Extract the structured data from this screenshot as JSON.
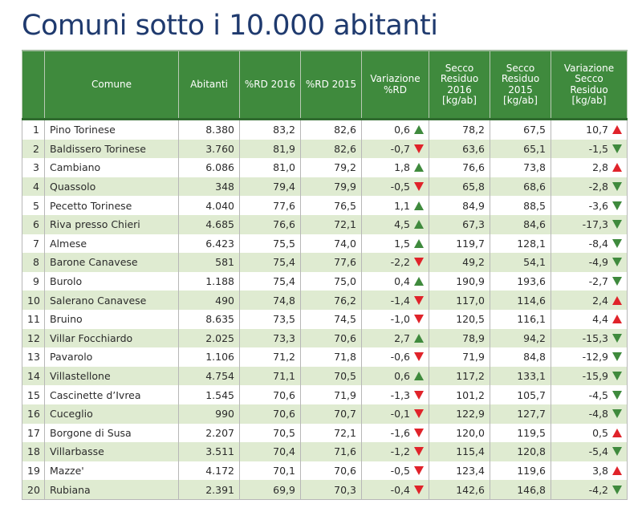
{
  "title": "Comuni sotto i 10.000 abitanti",
  "colors": {
    "header_bg": "#3f8a3d",
    "row_alt_bg": "#dfebd1",
    "title": "#1f3a6e",
    "arrow_green": "#3f8a3d",
    "arrow_red": "#e0232a"
  },
  "table": {
    "headers": [
      "",
      "Comune",
      "Abitanti",
      "%RD 2016",
      "%RD 2015",
      "Variazione\n%RD",
      "Secco\nResiduo\n2016\n[kg/ab]",
      "Secco\nResiduo\n2015\n[kg/ab]",
      "Variazione\nSecco\nResiduo\n[kg/ab]"
    ],
    "rows": [
      {
        "rank": "1",
        "comune": "Pino Torinese",
        "abitanti": "8.380",
        "rd2016": "83,2",
        "rd2015": "82,6",
        "var_rd": "0,6",
        "var_rd_dir": "up",
        "var_rd_color": "green",
        "sr2016": "78,2",
        "sr2015": "67,5",
        "var_sr": "10,7",
        "var_sr_dir": "up",
        "var_sr_color": "red"
      },
      {
        "rank": "2",
        "comune": "Baldissero Torinese",
        "abitanti": "3.760",
        "rd2016": "81,9",
        "rd2015": "82,6",
        "var_rd": "-0,7",
        "var_rd_dir": "down",
        "var_rd_color": "red",
        "sr2016": "63,6",
        "sr2015": "65,1",
        "var_sr": "-1,5",
        "var_sr_dir": "down",
        "var_sr_color": "green"
      },
      {
        "rank": "3",
        "comune": "Cambiano",
        "abitanti": "6.086",
        "rd2016": "81,0",
        "rd2015": "79,2",
        "var_rd": "1,8",
        "var_rd_dir": "up",
        "var_rd_color": "green",
        "sr2016": "76,6",
        "sr2015": "73,8",
        "var_sr": "2,8",
        "var_sr_dir": "up",
        "var_sr_color": "red"
      },
      {
        "rank": "4",
        "comune": "Quassolo",
        "abitanti": "348",
        "rd2016": "79,4",
        "rd2015": "79,9",
        "var_rd": "-0,5",
        "var_rd_dir": "down",
        "var_rd_color": "red",
        "sr2016": "65,8",
        "sr2015": "68,6",
        "var_sr": "-2,8",
        "var_sr_dir": "down",
        "var_sr_color": "green"
      },
      {
        "rank": "5",
        "comune": "Pecetto Torinese",
        "abitanti": "4.040",
        "rd2016": "77,6",
        "rd2015": "76,5",
        "var_rd": "1,1",
        "var_rd_dir": "up",
        "var_rd_color": "green",
        "sr2016": "84,9",
        "sr2015": "88,5",
        "var_sr": "-3,6",
        "var_sr_dir": "down",
        "var_sr_color": "green"
      },
      {
        "rank": "6",
        "comune": "Riva presso Chieri",
        "abitanti": "4.685",
        "rd2016": "76,6",
        "rd2015": "72,1",
        "var_rd": "4,5",
        "var_rd_dir": "up",
        "var_rd_color": "green",
        "sr2016": "67,3",
        "sr2015": "84,6",
        "var_sr": "-17,3",
        "var_sr_dir": "down",
        "var_sr_color": "green"
      },
      {
        "rank": "7",
        "comune": "Almese",
        "abitanti": "6.423",
        "rd2016": "75,5",
        "rd2015": "74,0",
        "var_rd": "1,5",
        "var_rd_dir": "up",
        "var_rd_color": "green",
        "sr2016": "119,7",
        "sr2015": "128,1",
        "var_sr": "-8,4",
        "var_sr_dir": "down",
        "var_sr_color": "green"
      },
      {
        "rank": "8",
        "comune": "Barone Canavese",
        "abitanti": "581",
        "rd2016": "75,4",
        "rd2015": "77,6",
        "var_rd": "-2,2",
        "var_rd_dir": "down",
        "var_rd_color": "red",
        "sr2016": "49,2",
        "sr2015": "54,1",
        "var_sr": "-4,9",
        "var_sr_dir": "down",
        "var_sr_color": "green"
      },
      {
        "rank": "9",
        "comune": "Burolo",
        "abitanti": "1.188",
        "rd2016": "75,4",
        "rd2015": "75,0",
        "var_rd": "0,4",
        "var_rd_dir": "up",
        "var_rd_color": "green",
        "sr2016": "190,9",
        "sr2015": "193,6",
        "var_sr": "-2,7",
        "var_sr_dir": "down",
        "var_sr_color": "green"
      },
      {
        "rank": "10",
        "comune": "Salerano Canavese",
        "abitanti": "490",
        "rd2016": "74,8",
        "rd2015": "76,2",
        "var_rd": "-1,4",
        "var_rd_dir": "down",
        "var_rd_color": "red",
        "sr2016": "117,0",
        "sr2015": "114,6",
        "var_sr": "2,4",
        "var_sr_dir": "up",
        "var_sr_color": "red"
      },
      {
        "rank": "11",
        "comune": "Bruino",
        "abitanti": "8.635",
        "rd2016": "73,5",
        "rd2015": "74,5",
        "var_rd": "-1,0",
        "var_rd_dir": "down",
        "var_rd_color": "red",
        "sr2016": "120,5",
        "sr2015": "116,1",
        "var_sr": "4,4",
        "var_sr_dir": "up",
        "var_sr_color": "red"
      },
      {
        "rank": "12",
        "comune": "Villar Focchiardo",
        "abitanti": "2.025",
        "rd2016": "73,3",
        "rd2015": "70,6",
        "var_rd": "2,7",
        "var_rd_dir": "up",
        "var_rd_color": "green",
        "sr2016": "78,9",
        "sr2015": "94,2",
        "var_sr": "-15,3",
        "var_sr_dir": "down",
        "var_sr_color": "green"
      },
      {
        "rank": "13",
        "comune": "Pavarolo",
        "abitanti": "1.106",
        "rd2016": "71,2",
        "rd2015": "71,8",
        "var_rd": "-0,6",
        "var_rd_dir": "down",
        "var_rd_color": "red",
        "sr2016": "71,9",
        "sr2015": "84,8",
        "var_sr": "-12,9",
        "var_sr_dir": "down",
        "var_sr_color": "green"
      },
      {
        "rank": "14",
        "comune": "Villastellone",
        "abitanti": "4.754",
        "rd2016": "71,1",
        "rd2015": "70,5",
        "var_rd": "0,6",
        "var_rd_dir": "up",
        "var_rd_color": "green",
        "sr2016": "117,2",
        "sr2015": "133,1",
        "var_sr": "-15,9",
        "var_sr_dir": "down",
        "var_sr_color": "green"
      },
      {
        "rank": "15",
        "comune": "Cascinette d’Ivrea",
        "abitanti": "1.545",
        "rd2016": "70,6",
        "rd2015": "71,9",
        "var_rd": "-1,3",
        "var_rd_dir": "down",
        "var_rd_color": "red",
        "sr2016": "101,2",
        "sr2015": "105,7",
        "var_sr": "-4,5",
        "var_sr_dir": "down",
        "var_sr_color": "green"
      },
      {
        "rank": "16",
        "comune": "Cuceglio",
        "abitanti": "990",
        "rd2016": "70,6",
        "rd2015": "70,7",
        "var_rd": "-0,1",
        "var_rd_dir": "down",
        "var_rd_color": "red",
        "sr2016": "122,9",
        "sr2015": "127,7",
        "var_sr": "-4,8",
        "var_sr_dir": "down",
        "var_sr_color": "green"
      },
      {
        "rank": "17",
        "comune": "Borgone di Susa",
        "abitanti": "2.207",
        "rd2016": "70,5",
        "rd2015": "72,1",
        "var_rd": "-1,6",
        "var_rd_dir": "down",
        "var_rd_color": "red",
        "sr2016": "120,0",
        "sr2015": "119,5",
        "var_sr": "0,5",
        "var_sr_dir": "up",
        "var_sr_color": "red"
      },
      {
        "rank": "18",
        "comune": "Villarbasse",
        "abitanti": "3.511",
        "rd2016": "70,4",
        "rd2015": "71,6",
        "var_rd": "-1,2",
        "var_rd_dir": "down",
        "var_rd_color": "red",
        "sr2016": "115,4",
        "sr2015": "120,8",
        "var_sr": "-5,4",
        "var_sr_dir": "down",
        "var_sr_color": "green"
      },
      {
        "rank": "19",
        "comune": "Mazze'",
        "abitanti": "4.172",
        "rd2016": "70,1",
        "rd2015": "70,6",
        "var_rd": "-0,5",
        "var_rd_dir": "down",
        "var_rd_color": "red",
        "sr2016": "123,4",
        "sr2015": "119,6",
        "var_sr": "3,8",
        "var_sr_dir": "up",
        "var_sr_color": "red"
      },
      {
        "rank": "20",
        "comune": "Rubiana",
        "abitanti": "2.391",
        "rd2016": "69,9",
        "rd2015": "70,3",
        "var_rd": "-0,4",
        "var_rd_dir": "down",
        "var_rd_color": "red",
        "sr2016": "142,6",
        "sr2015": "146,8",
        "var_sr": "-4,2",
        "var_sr_dir": "down",
        "var_sr_color": "green"
      }
    ]
  }
}
